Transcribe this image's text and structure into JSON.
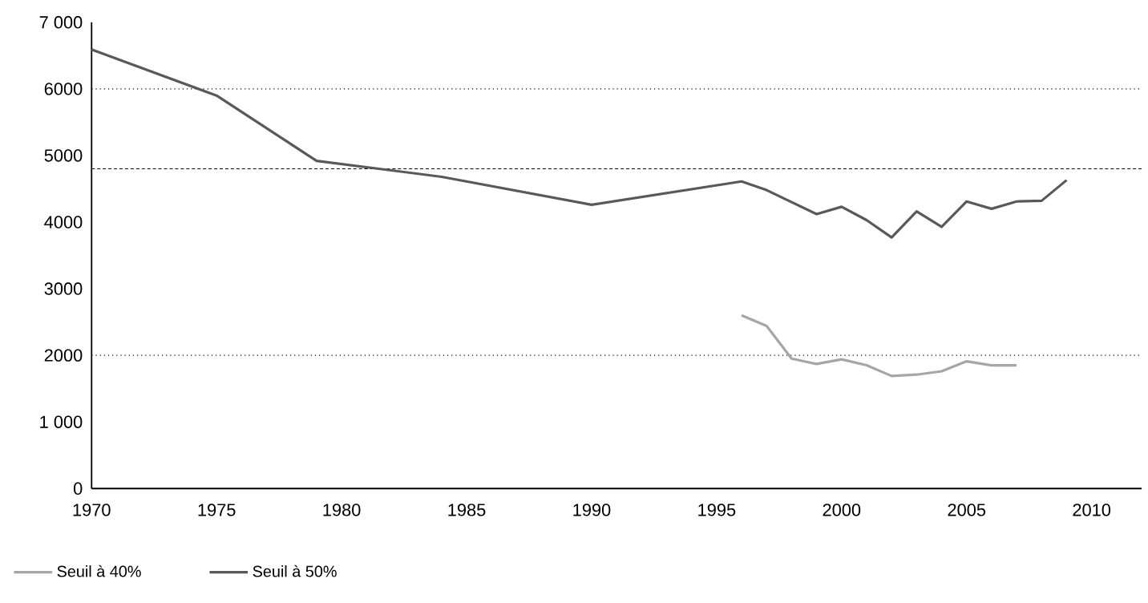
{
  "chart_data": {
    "type": "line",
    "xlim": [
      1970,
      2012
    ],
    "xticks": [
      1970,
      1975,
      1980,
      1985,
      1990,
      1995,
      2000,
      2005,
      2010
    ],
    "ylim": [
      0,
      7000
    ],
    "yticks": [
      0,
      {
        "value": 1000,
        "label": "1 000"
      },
      2000,
      3000,
      4000,
      5000,
      6000,
      {
        "value": 7000,
        "label": "7 000"
      }
    ],
    "series": [
      {
        "name": "Seuil à 40%",
        "color": "#a6a6a6",
        "x": [
          1996,
          1997,
          1998,
          1999,
          2000,
          2001,
          2002,
          2003,
          2004,
          2005,
          2006,
          2007
        ],
        "values": [
          2600,
          2440,
          1950,
          1870,
          1940,
          1850,
          1690,
          1710,
          1760,
          1910,
          1850,
          1850
        ]
      },
      {
        "name": "Seuil à 50%",
        "color": "#595959",
        "x": [
          1970,
          1975,
          1979,
          1984,
          1990,
          1996,
          1997,
          1999,
          2000,
          2001,
          2002,
          2003,
          2004,
          2005,
          2006,
          2007,
          2008,
          2009
        ],
        "values": [
          6590,
          5900,
          4920,
          4680,
          4260,
          4610,
          4480,
          4120,
          4230,
          4030,
          3770,
          4160,
          3930,
          4310,
          4200,
          4310,
          4320,
          4630
        ]
      }
    ],
    "ref_lines": [
      {
        "axis": "y",
        "value": 6000,
        "line_style": "dotted"
      },
      {
        "axis": "y",
        "value": 4800,
        "line_style": "dashed"
      },
      {
        "axis": "y",
        "value": 2000,
        "line_style": "dotted"
      }
    ],
    "legend": "bottom left",
    "grid": false,
    "marker": "none",
    "line_style": "solid"
  }
}
